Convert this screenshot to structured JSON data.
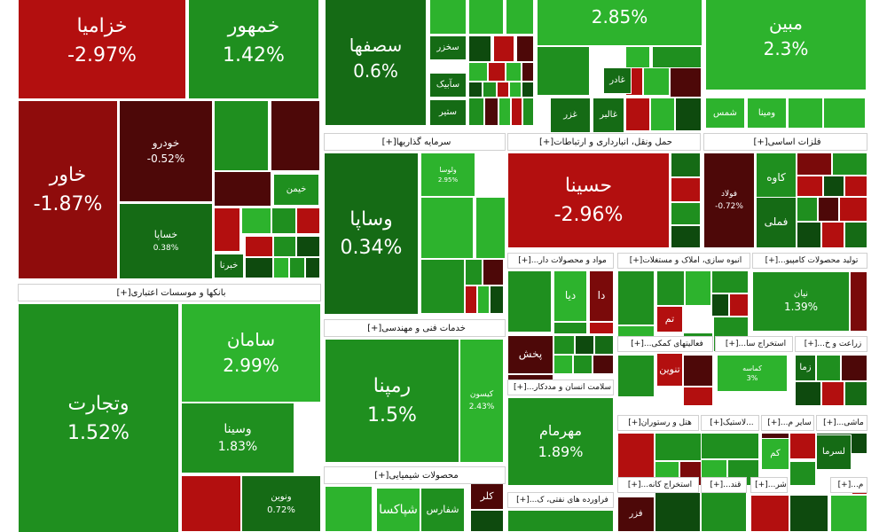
{
  "colors": {
    "bright_green": "#2db32d",
    "green": "#1f8f1f",
    "dark_green": "#156b15",
    "deep_green": "#0e4a0e",
    "red": "#b30f0f",
    "dark_red": "#7a0a0a",
    "deep_red": "#4d0808"
  },
  "sectors": [
    {
      "name": "سرمایه گذاریها",
      "plus": "[+]"
    },
    {
      "name": "حمل ونقل، انبارداری و ارتباطات",
      "plus": "[+]"
    },
    {
      "name": "فلزات اساسی",
      "plus": "[+]"
    },
    {
      "name": "مواد و محصولات دار...",
      "plus": "[+]"
    },
    {
      "name": "انبوه سازی، املاک و مستغلات",
      "plus": "[+]"
    },
    {
      "name": "تولید محصولات کامپیو...",
      "plus": "[+]"
    },
    {
      "name": "بانکها و موسسات اعتباری",
      "plus": "[+]"
    },
    {
      "name": "خدمات فنی و مهندسی",
      "plus": "[+]"
    },
    {
      "name": "سلامت انسان و مددکار...",
      "plus": "[+]"
    },
    {
      "name": "فعالیتهای کمکی...",
      "plus": "[+]"
    },
    {
      "name": "استخراج سا...",
      "plus": "[+]"
    },
    {
      "name": "زراعت و خ...",
      "plus": "[+]"
    },
    {
      "name": "هتل و رستوران",
      "plus": "[+]"
    },
    {
      "name": "...لاستیک",
      "plus": "[+]"
    },
    {
      "name": "سایر م...",
      "plus": "[+]"
    },
    {
      "name": "ماشی...",
      "plus": "[+]"
    },
    {
      "name": "محصولات شیمیایی",
      "plus": "[+]"
    },
    {
      "name": "فراورده های نفتی، ک...",
      "plus": "[+]"
    },
    {
      "name": "استخراج کانه...",
      "plus": "[+]"
    },
    {
      "name": "قند...",
      "plus": "[+]"
    },
    {
      "name": "شر...",
      "plus": "[+]"
    },
    {
      "name": "م...",
      "plus": "[+]"
    }
  ],
  "tiles": [
    {
      "symbol": "خزامیا",
      "change": "-2.97%",
      "color": "#b30f0f"
    },
    {
      "symbol": "خمهور",
      "change": "1.42%",
      "color": "#1f8f1f"
    },
    {
      "symbol": "سصفها",
      "change": "0.6%",
      "color": "#156b15"
    },
    {
      "symbol": "",
      "change": "2.85%",
      "color": "#2db32d"
    },
    {
      "symbol": "مبین",
      "change": "2.3%",
      "color": "#2db32d"
    },
    {
      "symbol": "خاور",
      "change": "-1.87%",
      "color": "#8f0c0c"
    },
    {
      "symbol": "خودرو",
      "change": "-0.52%",
      "color": "#4d0808"
    },
    {
      "symbol": "خساپا",
      "change": "0.38%",
      "color": "#156b15"
    },
    {
      "symbol": "وساپا",
      "change": "0.34%",
      "color": "#156b15"
    },
    {
      "symbol": "حسینا",
      "change": "-2.96%",
      "color": "#b30f0f"
    },
    {
      "symbol": "فولاد",
      "change": "-0.72%",
      "color": "#4d0808"
    },
    {
      "symbol": "کاوه",
      "change": "",
      "color": "#1f8f1f"
    },
    {
      "symbol": "فملی",
      "change": "",
      "color": "#156b15"
    },
    {
      "symbol": "نیان",
      "change": "1.39%",
      "color": "#1f8f1f"
    },
    {
      "symbol": "وتجارت",
      "change": "1.52%",
      "color": "#1f8f1f"
    },
    {
      "symbol": "سامان",
      "change": "2.99%",
      "color": "#2db32d"
    },
    {
      "symbol": "وسینا",
      "change": "1.83%",
      "color": "#1f8f1f"
    },
    {
      "symbol": "ونوین",
      "change": "0.72%",
      "color": "#156b15"
    },
    {
      "symbol": "رمپنا",
      "change": "1.5%",
      "color": "#1f8f1f"
    },
    {
      "symbol": "کیسون",
      "change": "2.43%",
      "color": "#2db32d"
    },
    {
      "symbol": "مهرمام",
      "change": "1.89%",
      "color": "#1f8f1f"
    },
    {
      "symbol": "شپاکسا",
      "change": "",
      "color": "#2db32d"
    },
    {
      "symbol": "شفارس",
      "change": "",
      "color": "#1f8f1f"
    },
    {
      "symbol": "کلر",
      "change": "",
      "color": "#4d0808"
    },
    {
      "symbol": "پخش",
      "change": "",
      "color": "#4d0808"
    },
    {
      "symbol": "دیا",
      "change": "",
      "color": "#2db32d"
    },
    {
      "symbol": "دا",
      "change": "",
      "color": "#7a0a0a"
    },
    {
      "symbol": "تنوین",
      "change": "",
      "color": "#b30f0f"
    },
    {
      "symbol": "تم",
      "change": "",
      "color": "#b30f0f"
    },
    {
      "symbol": "سخزر",
      "change": "",
      "color": "#156b15"
    },
    {
      "symbol": "سآبیک",
      "change": "",
      "color": "#156b15"
    },
    {
      "symbol": "ستیر",
      "change": "",
      "color": "#156b15"
    },
    {
      "symbol": "غادر",
      "change": "",
      "color": "#156b15"
    },
    {
      "symbol": "غالبر",
      "change": "",
      "color": "#156b15"
    },
    {
      "symbol": "غزر",
      "change": "",
      "color": "#156b15"
    },
    {
      "symbol": "شمس",
      "change": "",
      "color": "#2db32d"
    },
    {
      "symbol": "ومینا",
      "change": "",
      "color": "#2db32d"
    },
    {
      "symbol": "خیمن",
      "change": "",
      "color": "#1f8f1f"
    },
    {
      "symbol": "خبرنا",
      "change": "",
      "color": "#156b15"
    },
    {
      "symbol": "زما",
      "change": "",
      "color": "#156b15"
    },
    {
      "symbol": "کم",
      "change": "",
      "color": "#2db32d"
    },
    {
      "symbol": "لسرما",
      "change": "",
      "color": "#156b15"
    },
    {
      "symbol": "فزر",
      "change": "",
      "color": "#4d0808"
    },
    {
      "symbol": "ولوسا",
      "change": "2.95%",
      "color": "#2db32d"
    },
    {
      "symbol": "کماسه",
      "change": "3%",
      "color": "#2db32d"
    }
  ]
}
